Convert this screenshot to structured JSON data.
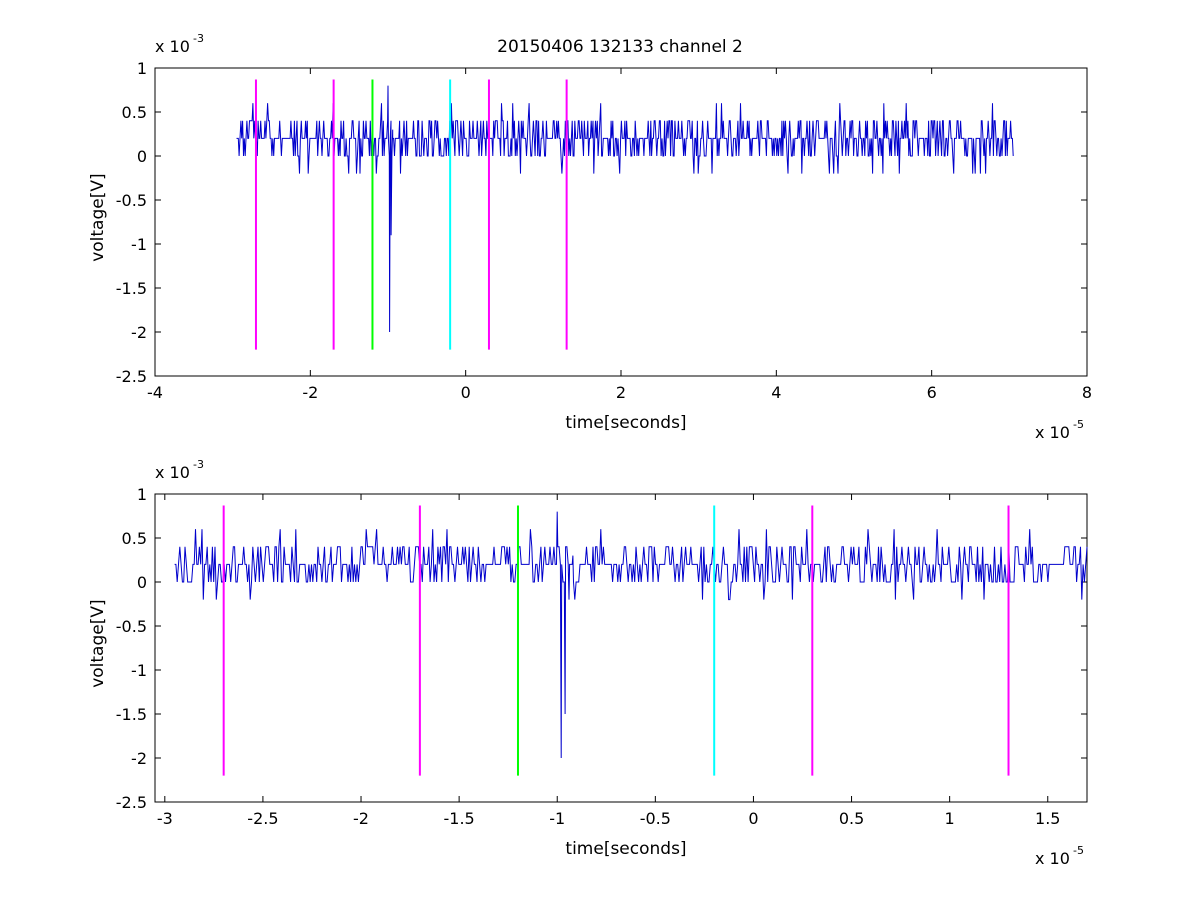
{
  "figure_title": "20150406 132133 channel 2",
  "chart_data": [
    {
      "type": "line",
      "title": "20150406 132133 channel 2",
      "xlabel": "time[seconds]",
      "ylabel": "voltage[V]",
      "x_scale_label": "x 10",
      "x_scale_exp": "-5",
      "y_scale_label": "x 10",
      "y_scale_exp": "-3",
      "xlim": [
        -4,
        8
      ],
      "ylim": [
        -2.5,
        1
      ],
      "x_ticks": [
        -4,
        -2,
        0,
        2,
        4,
        6,
        8
      ],
      "x_tick_labels": [
        "-4",
        "-2",
        "0",
        "2",
        "4",
        "6",
        "8"
      ],
      "y_ticks": [
        -2.5,
        -2,
        -1.5,
        -1,
        -0.5,
        0,
        0.5,
        1
      ],
      "y_tick_labels": [
        "-2.5",
        "-2",
        "-1.5",
        "-1",
        "-0.5",
        "0",
        "0.5",
        "1"
      ],
      "signal": {
        "color": "#0000cc",
        "x_start": -2.95,
        "x_end": 7.05,
        "baseline": [
          0,
          0.2,
          0.4,
          0.2,
          0.2,
          0.4,
          0,
          0.2
        ],
        "events": [
          {
            "x": -1.0,
            "y": 0.8
          },
          {
            "x": -0.98,
            "y": -2.0
          },
          {
            "x": -0.96,
            "y": -0.9
          },
          {
            "x": -0.94,
            "y": 0.3
          }
        ]
      },
      "markers": [
        {
          "x": -2.7,
          "color": "#ff00ff"
        },
        {
          "x": -1.7,
          "color": "#ff00ff"
        },
        {
          "x": -1.2,
          "color": "#00ff00"
        },
        {
          "x": -0.2,
          "color": "#00ffff"
        },
        {
          "x": 0.3,
          "color": "#ff00ff"
        },
        {
          "x": 1.3,
          "color": "#ff00ff"
        }
      ],
      "marker_range": [
        -2.2,
        0.87
      ]
    },
    {
      "type": "line",
      "title": "",
      "xlabel": "time[seconds]",
      "ylabel": "voltage[V]",
      "x_scale_label": "x 10",
      "x_scale_exp": "-5",
      "y_scale_label": "x 10",
      "y_scale_exp": "-3",
      "xlim": [
        -3.05,
        1.7
      ],
      "ylim": [
        -2.5,
        1
      ],
      "x_ticks": [
        -3,
        -2.5,
        -2,
        -1.5,
        -1,
        -0.5,
        0,
        0.5,
        1,
        1.5
      ],
      "x_tick_labels": [
        "-3",
        "-2.5",
        "-2",
        "-1.5",
        "-1",
        "-0.5",
        "0",
        "0.5",
        "1",
        "1.5"
      ],
      "y_ticks": [
        -2.5,
        -2,
        -1.5,
        -1,
        -0.5,
        0,
        0.5,
        1
      ],
      "y_tick_labels": [
        "-2.5",
        "-2",
        "-1.5",
        "-1",
        "-0.5",
        "0",
        "0.5",
        "1"
      ],
      "signal": {
        "color": "#0000cc",
        "x_start": -2.95,
        "x_end": 1.7,
        "baseline": [
          0,
          0.2,
          0.4,
          0.2,
          0.2,
          0.4,
          0,
          0.2
        ],
        "events": [
          {
            "x": -1.0,
            "y": 0.8
          },
          {
            "x": -0.98,
            "y": -2.0
          },
          {
            "x": -0.96,
            "y": -1.5
          },
          {
            "x": -0.94,
            "y": -0.2
          },
          {
            "x": -0.92,
            "y": 0.3
          }
        ]
      },
      "markers": [
        {
          "x": -2.7,
          "color": "#ff00ff"
        },
        {
          "x": -1.7,
          "color": "#ff00ff"
        },
        {
          "x": -1.2,
          "color": "#00ff00"
        },
        {
          "x": -0.2,
          "color": "#00ffff"
        },
        {
          "x": 0.3,
          "color": "#ff00ff"
        },
        {
          "x": 1.3,
          "color": "#ff00ff"
        }
      ],
      "marker_range": [
        -2.2,
        0.87
      ]
    }
  ]
}
